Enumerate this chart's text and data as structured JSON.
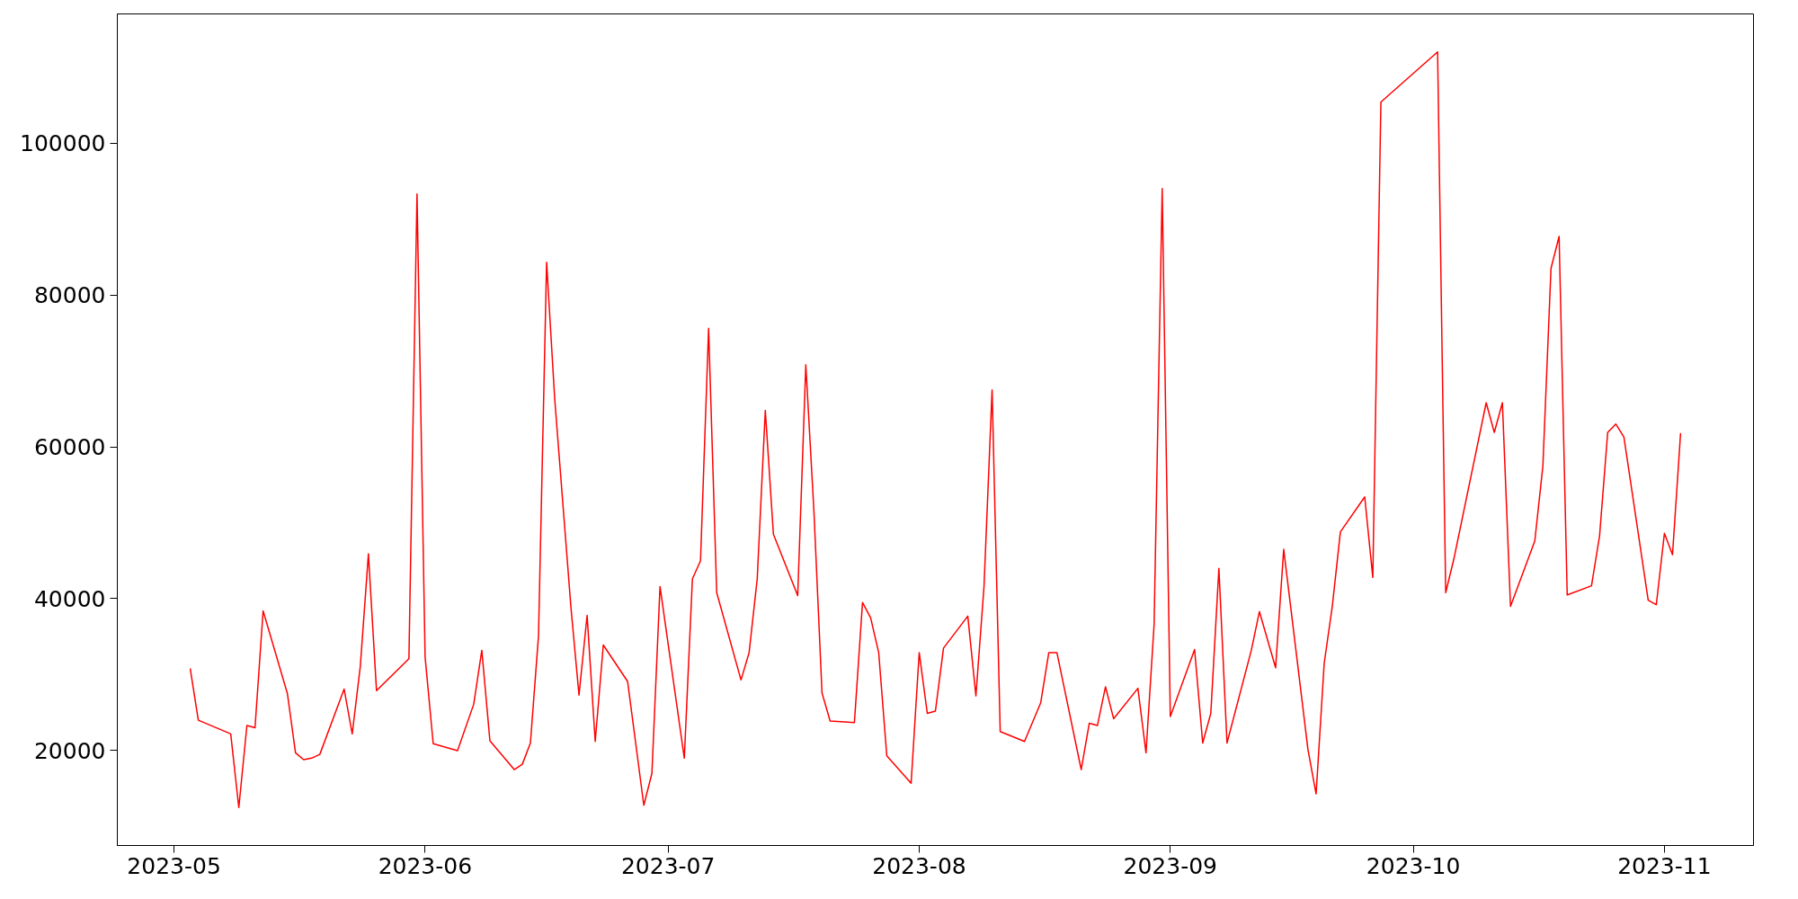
{
  "chart_data": {
    "type": "line",
    "grid": false,
    "marker": "none",
    "line_style": "solid",
    "xlim": [
      "2023-04-24",
      "2023-11-12"
    ],
    "ylim": [
      7500,
      117000
    ],
    "xticks": [
      {
        "value": "2023-05-01",
        "label": "2023-05"
      },
      {
        "value": "2023-06-01",
        "label": "2023-06"
      },
      {
        "value": "2023-07-01",
        "label": "2023-07"
      },
      {
        "value": "2023-08-01",
        "label": "2023-08"
      },
      {
        "value": "2023-09-01",
        "label": "2023-09"
      },
      {
        "value": "2023-10-01",
        "label": "2023-10"
      },
      {
        "value": "2023-11-01",
        "label": "2023-11"
      }
    ],
    "yticks": [
      20000,
      40000,
      60000,
      80000,
      100000
    ],
    "x": [
      "2023-05-03",
      "2023-05-04",
      "2023-05-08",
      "2023-05-09",
      "2023-05-10",
      "2023-05-11",
      "2023-05-12",
      "2023-05-15",
      "2023-05-16",
      "2023-05-17",
      "2023-05-18",
      "2023-05-19",
      "2023-05-22",
      "2023-05-23",
      "2023-05-24",
      "2023-05-25",
      "2023-05-26",
      "2023-05-30",
      "2023-05-31",
      "2023-06-01",
      "2023-06-02",
      "2023-06-05",
      "2023-06-07",
      "2023-06-08",
      "2023-06-09",
      "2023-06-12",
      "2023-06-13",
      "2023-06-14",
      "2023-06-15",
      "2023-06-16",
      "2023-06-17",
      "2023-06-19",
      "2023-06-20",
      "2023-06-21",
      "2023-06-22",
      "2023-06-23",
      "2023-06-26",
      "2023-06-28",
      "2023-06-29",
      "2023-06-30",
      "2023-07-03",
      "2023-07-04",
      "2023-07-05",
      "2023-07-06",
      "2023-07-07",
      "2023-07-10",
      "2023-07-11",
      "2023-07-12",
      "2023-07-13",
      "2023-07-14",
      "2023-07-17",
      "2023-07-18",
      "2023-07-19",
      "2023-07-20",
      "2023-07-21",
      "2023-07-24",
      "2023-07-25",
      "2023-07-26",
      "2023-07-27",
      "2023-07-28",
      "2023-07-31",
      "2023-08-01",
      "2023-08-02",
      "2023-08-03",
      "2023-08-04",
      "2023-08-07",
      "2023-08-08",
      "2023-08-09",
      "2023-08-10",
      "2023-08-11",
      "2023-08-14",
      "2023-08-16",
      "2023-08-17",
      "2023-08-18",
      "2023-08-21",
      "2023-08-22",
      "2023-08-23",
      "2023-08-24",
      "2023-08-25",
      "2023-08-28",
      "2023-08-29",
      "2023-08-30",
      "2023-08-31",
      "2023-09-01",
      "2023-09-04",
      "2023-09-05",
      "2023-09-06",
      "2023-09-07",
      "2023-09-08",
      "2023-09-11",
      "2023-09-12",
      "2023-09-14",
      "2023-09-15",
      "2023-09-18",
      "2023-09-19",
      "2023-09-20",
      "2023-09-21",
      "2023-09-22",
      "2023-09-25",
      "2023-09-26",
      "2023-09-27",
      "2023-10-04",
      "2023-10-05",
      "2023-10-06",
      "2023-10-10",
      "2023-10-11",
      "2023-10-12",
      "2023-10-13",
      "2023-10-16",
      "2023-10-17",
      "2023-10-18",
      "2023-10-19",
      "2023-10-20",
      "2023-10-23",
      "2023-10-24",
      "2023-10-25",
      "2023-10-26",
      "2023-10-27",
      "2023-10-30",
      "2023-10-31",
      "2023-11-01",
      "2023-11-02",
      "2023-11-03"
    ],
    "series": [
      {
        "color": "#ff0000",
        "values": [
          30800,
          24000,
          22200,
          12500,
          23300,
          23000,
          38400,
          27500,
          19700,
          18800,
          19000,
          19500,
          28100,
          22200,
          31100,
          45900,
          27900,
          32100,
          93300,
          32300,
          20900,
          20000,
          26100,
          33200,
          21300,
          17500,
          18200,
          21000,
          35100,
          84300,
          66300,
          38900,
          27300,
          37800,
          21200,
          33900,
          29100,
          12800,
          17000,
          41600,
          19000,
          42600,
          45000,
          75600,
          40800,
          29300,
          32900,
          42600,
          64800,
          48500,
          40400,
          70800,
          51600,
          27600,
          23900,
          23700,
          39500,
          37500,
          32900,
          19300,
          15700,
          32900,
          24900,
          25200,
          33500,
          37700,
          27200,
          41600,
          67500,
          22500,
          21200,
          26300,
          32900,
          32900,
          17500,
          23600,
          23300,
          28400,
          24200,
          28200,
          19700,
          36600,
          94000,
          24500,
          33300,
          21000,
          24900,
          44000,
          21000,
          33200,
          38300,
          30900,
          46500,
          20100,
          14300,
          31500,
          39000,
          48800,
          53400,
          42800,
          105400,
          112000,
          40800,
          45200,
          65800,
          61900,
          65800,
          39000,
          47600,
          57500,
          83500,
          87700,
          40500,
          41700,
          48300,
          61900,
          63000,
          61300,
          39800,
          39200,
          48600,
          45800,
          61800
        ]
      }
    ]
  }
}
